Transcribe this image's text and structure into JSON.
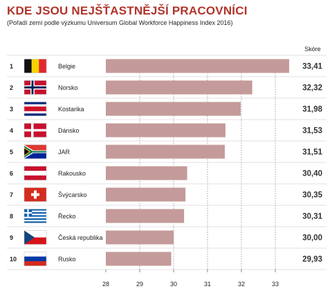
{
  "title": "KDE JSOU NEJŠŤASTNĚJŠÍ PRACOVNÍCI",
  "subtitle": "(Pořadí zemí podle výzkumu Universum Global Workforce Happiness Index 2016)",
  "colors": {
    "title": "#b1332a",
    "bar": "#c49b9a",
    "grid": "#888888"
  },
  "chart_data": {
    "type": "bar",
    "orientation": "horizontal",
    "value_header": "Skóre",
    "xlim": [
      28,
      33.4
    ],
    "xticks": [
      28,
      29,
      30,
      31,
      32,
      33
    ],
    "grid": "dotted",
    "rows": [
      {
        "rank": "1",
        "country": "Belgie",
        "flag": "belgium-flag",
        "value": 33.41,
        "label": "33,41"
      },
      {
        "rank": "2",
        "country": "Norsko",
        "flag": "norway-flag",
        "value": 32.32,
        "label": "32,32"
      },
      {
        "rank": "3",
        "country": "Kostarika",
        "flag": "costa-rica-flag",
        "value": 31.98,
        "label": "31,98"
      },
      {
        "rank": "4",
        "country": "Dánsko",
        "flag": "denmark-flag",
        "value": 31.53,
        "label": "31,53"
      },
      {
        "rank": "5",
        "country": "JAR",
        "flag": "south-africa-flag",
        "value": 31.51,
        "label": "31,51"
      },
      {
        "rank": "6",
        "country": "Rakousko",
        "flag": "austria-flag",
        "value": 30.4,
        "label": "30,40"
      },
      {
        "rank": "7",
        "country": "Švýcarsko",
        "flag": "switzerland-flag",
        "value": 30.35,
        "label": "30,35"
      },
      {
        "rank": "8",
        "country": "Řecko",
        "flag": "greece-flag",
        "value": 30.31,
        "label": "30,31"
      },
      {
        "rank": "9",
        "country": "Česká republika",
        "flag": "czech-republic-flag",
        "value": 30.0,
        "label": "30,00"
      },
      {
        "rank": "10",
        "country": "Rusko",
        "flag": "russia-flag",
        "value": 29.93,
        "label": "29,93"
      }
    ]
  }
}
